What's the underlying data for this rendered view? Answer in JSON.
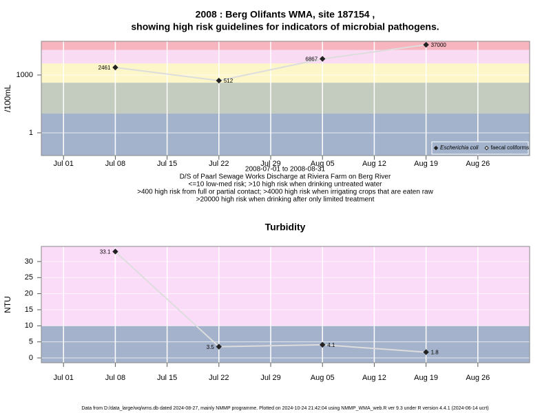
{
  "chart_data": [
    {
      "type": "line",
      "title_lines": [
        "2008 : Berg Olifants WMA, site 187154 ,",
        "showing high risk guidelines for indicators of microbial pathogens."
      ],
      "ylabel": "/100mL",
      "log_y": true,
      "x": [
        "2008-07-08",
        "2008-07-22",
        "2008-08-05",
        "2008-08-19"
      ],
      "xlim": [
        "2008-06-28",
        "2008-09-02"
      ],
      "xticks": [
        {
          "value": "2008-07-01",
          "label": "Jul 01"
        },
        {
          "value": "2008-07-08",
          "label": "Jul 08"
        },
        {
          "value": "2008-07-15",
          "label": "Jul 15"
        },
        {
          "value": "2008-07-22",
          "label": "Jul 22"
        },
        {
          "value": "2008-07-29",
          "label": "Jul 29"
        },
        {
          "value": "2008-08-05",
          "label": "Aug 05"
        },
        {
          "value": "2008-08-12",
          "label": "Aug 12"
        },
        {
          "value": "2008-08-19",
          "label": "Aug 19"
        },
        {
          "value": "2008-08-26",
          "label": "Aug 26"
        }
      ],
      "ylim": [
        0.066,
        56000
      ],
      "yticks": [
        1,
        1000
      ],
      "grid": true,
      "bands": {
        "breaks": [
          10,
          400,
          4000,
          20000
        ],
        "colors": [
          "#a3b3cc",
          "#c4cbbf",
          "#fdf6c8",
          "#f9dcf3",
          "#f7b5bf"
        ]
      },
      "line_color": "#dddddd",
      "series": [
        {
          "name": "Escherichia coli",
          "color": "#222222",
          "marker": "filled-diamond",
          "values": [
            2461,
            512,
            6867,
            37000
          ]
        },
        {
          "name": "faecal coliforms",
          "color": "#222222",
          "marker": "open-diamond",
          "values": [
            null,
            null,
            null,
            null
          ]
        }
      ],
      "legend": "lower-right",
      "notes": [
        "2008-07-01 to 2008-08-31",
        "D/S of Paarl Sewage Works Discharge at Riviera Farm on Berg River",
        "<=10 low-med risk; >10 high risk when drinking untreated water",
        ">400 high risk from full or partial contact; >4000 high risk when irrigating crops that are eaten raw",
        ">20000 high risk when drinking after only limited treatment"
      ]
    },
    {
      "type": "line",
      "title_lines": [
        "Turbidity"
      ],
      "ylabel": "NTU",
      "log_y": false,
      "x": [
        "2008-07-08",
        "2008-07-22",
        "2008-08-05",
        "2008-08-19"
      ],
      "xlim": [
        "2008-06-28",
        "2008-09-02"
      ],
      "xticks": [
        {
          "value": "2008-07-01",
          "label": "Jul 01"
        },
        {
          "value": "2008-07-08",
          "label": "Jul 08"
        },
        {
          "value": "2008-07-15",
          "label": "Jul 15"
        },
        {
          "value": "2008-07-22",
          "label": "Jul 22"
        },
        {
          "value": "2008-07-29",
          "label": "Jul 29"
        },
        {
          "value": "2008-08-05",
          "label": "Aug 05"
        },
        {
          "value": "2008-08-12",
          "label": "Aug 12"
        },
        {
          "value": "2008-08-19",
          "label": "Aug 19"
        },
        {
          "value": "2008-08-26",
          "label": "Aug 26"
        }
      ],
      "ylim": [
        -1.5,
        34.7
      ],
      "yticks": [
        0,
        5,
        10,
        15,
        20,
        25,
        30
      ],
      "grid": true,
      "bands": {
        "breaks": [
          10
        ],
        "colors": [
          "#a4b3cb",
          "#fbdcf8"
        ]
      },
      "line_color": "#dddddd",
      "series": [
        {
          "name": "Turbidity",
          "color": "#222222",
          "marker": "filled-diamond",
          "values": [
            33.1,
            3.5,
            4.1,
            1.8
          ]
        }
      ]
    }
  ],
  "footer": "Data from D:/data_large/wq/wms.db dated 2024-08-27, mainly NMMP programme. Plotted on 2024-10-24 21:42:04 using NMMP_WMA_web.R ver 9.3 under R version 4.4.1 (2024-06-14 ucrt)"
}
